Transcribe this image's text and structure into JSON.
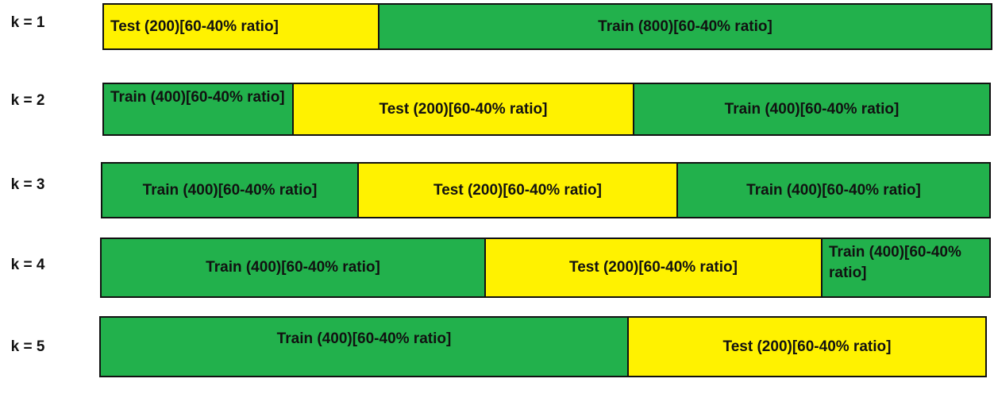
{
  "rows": [
    {
      "label": "k = 1",
      "segments": [
        "Test (200)[60-40% ratio]",
        "Train (800)[60-40% ratio]"
      ]
    },
    {
      "label": "k = 2",
      "segments": [
        "Train (400)[60-40% ratio]",
        "Test (200)[60-40% ratio]",
        "Train (400)[60-40% ratio]"
      ]
    },
    {
      "label": "k = 3",
      "segments": [
        "Train (400)[60-40% ratio]",
        "Test (200)[60-40% ratio]",
        "Train (400)[60-40% ratio]"
      ]
    },
    {
      "label": "k = 4",
      "segments": [
        "Train (400)[60-40% ratio]",
        "Test (200)[60-40% ratio]",
        "Train (400)[60-40% ratio]"
      ]
    },
    {
      "label": "k = 5",
      "segments": [
        "Train (400)[60-40% ratio]",
        "Test (200)[60-40% ratio]"
      ]
    }
  ]
}
